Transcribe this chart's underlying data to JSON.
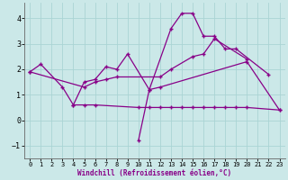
{
  "xlabel": "Windchill (Refroidissement éolien,°C)",
  "xlim": [
    -0.5,
    23.5
  ],
  "ylim": [
    -1.5,
    4.6
  ],
  "yticks": [
    -1,
    0,
    1,
    2,
    3,
    4
  ],
  "xticks": [
    0,
    1,
    2,
    3,
    4,
    5,
    6,
    7,
    8,
    9,
    10,
    11,
    12,
    13,
    14,
    15,
    16,
    17,
    18,
    19,
    20,
    21,
    22,
    23
  ],
  "bg_color": "#cbe8e8",
  "grid_color": "#aad4d4",
  "line_color": "#880088",
  "series": [
    {
      "x": [
        0,
        1,
        3,
        4,
        5,
        6,
        7,
        8,
        9,
        11,
        12,
        20,
        23
      ],
      "y": [
        1.9,
        2.2,
        1.3,
        0.6,
        1.5,
        1.6,
        2.1,
        2.0,
        2.6,
        1.2,
        1.3,
        2.3,
        0.4
      ]
    },
    {
      "x": [
        4,
        5,
        6,
        10,
        11,
        12,
        13,
        14,
        15,
        16,
        17,
        18,
        19,
        20,
        23
      ],
      "y": [
        0.6,
        0.6,
        0.6,
        0.5,
        0.5,
        0.5,
        0.5,
        0.5,
        0.5,
        0.5,
        0.5,
        0.5,
        0.5,
        0.5,
        0.4
      ]
    },
    {
      "x": [
        0,
        5,
        6,
        7,
        8,
        12,
        13,
        15,
        16,
        17,
        20
      ],
      "y": [
        1.9,
        1.3,
        1.5,
        1.6,
        1.7,
        1.7,
        2.0,
        2.5,
        2.6,
        3.2,
        2.4
      ]
    },
    {
      "x": [
        10,
        11,
        13,
        14,
        15,
        16,
        17,
        18,
        19,
        22
      ],
      "y": [
        -0.8,
        1.2,
        3.6,
        4.2,
        4.2,
        3.3,
        3.3,
        2.8,
        2.8,
        1.8
      ]
    }
  ]
}
